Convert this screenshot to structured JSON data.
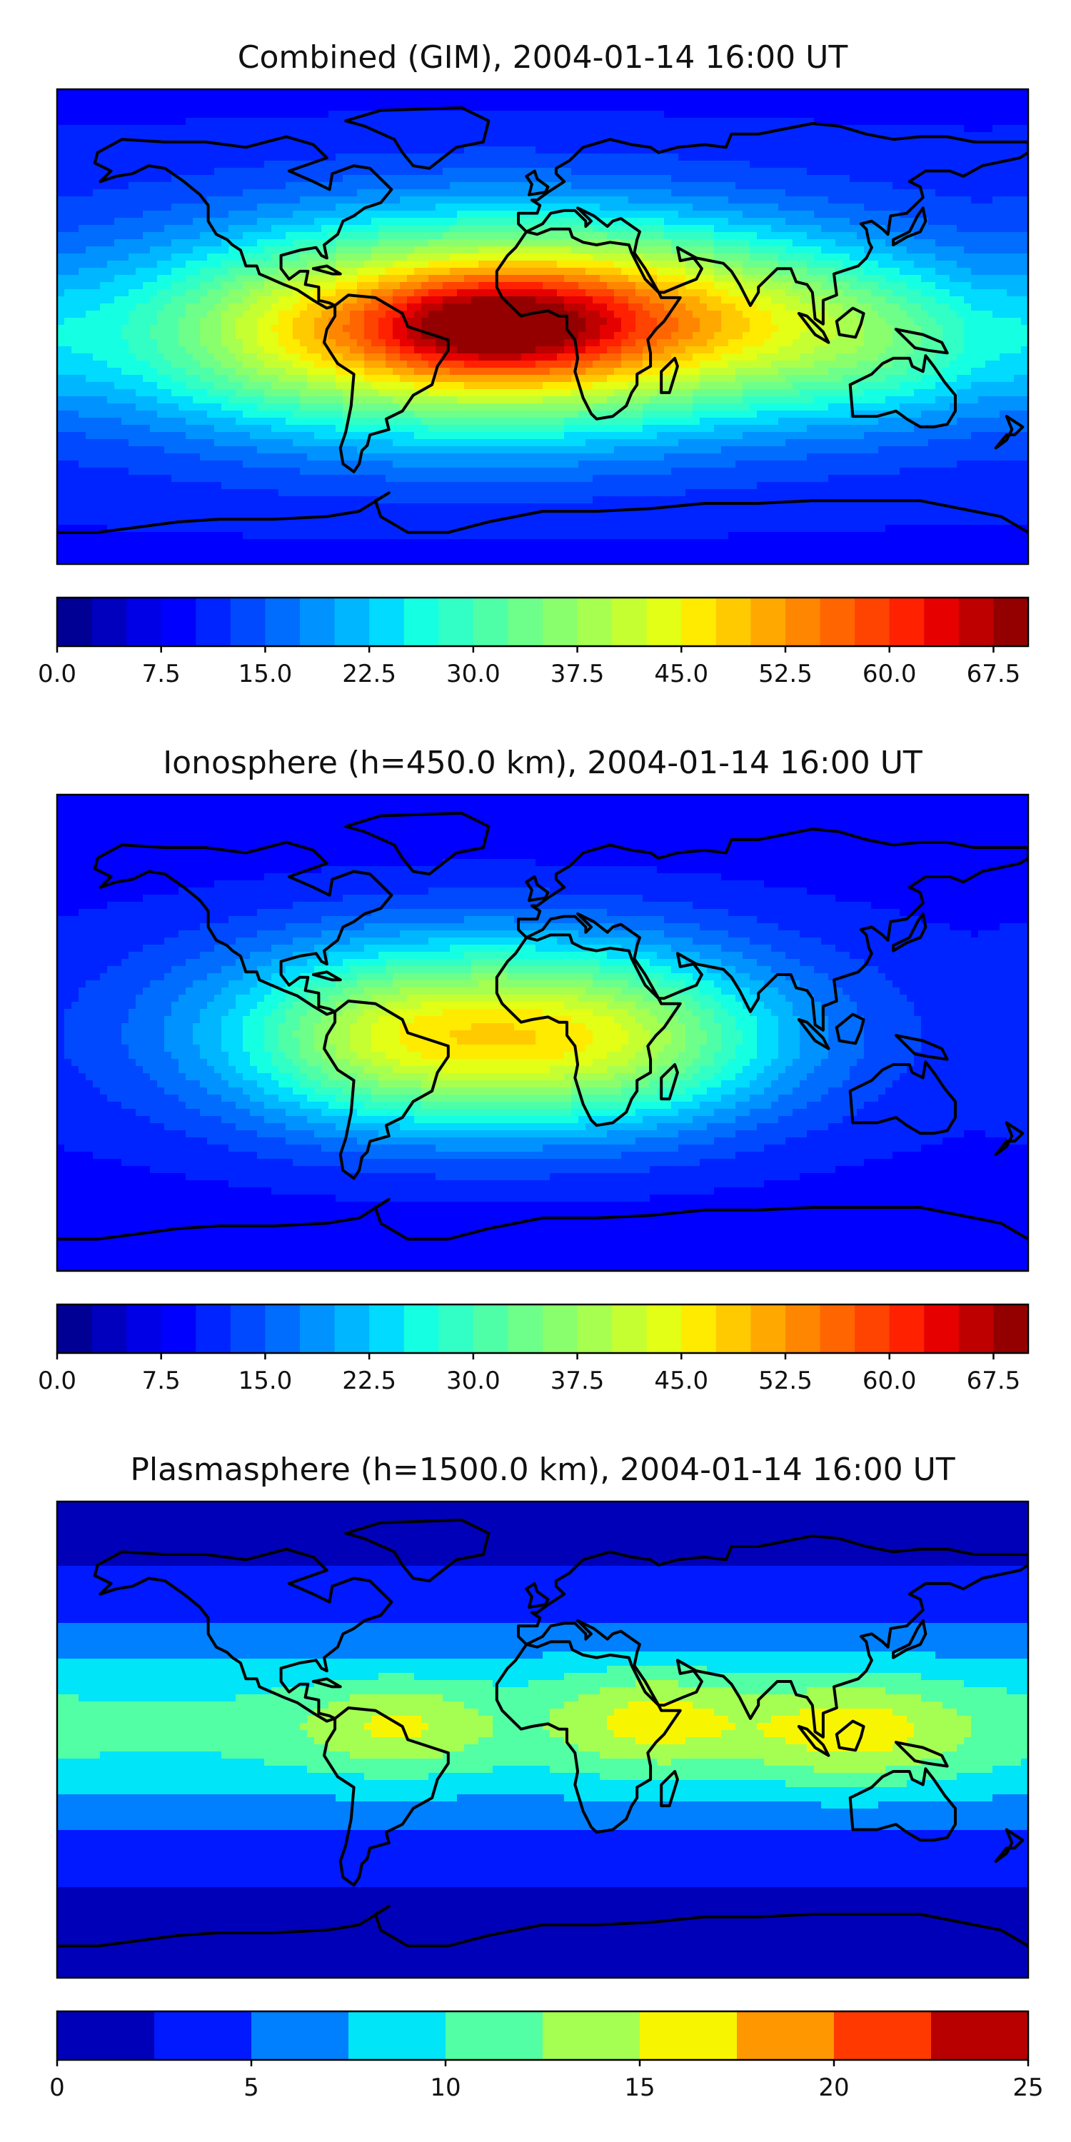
{
  "figure_caption": "TEC maps",
  "chart_data": [
    {
      "type": "heatmap",
      "title": "Combined (GIM), 2004-01-14 16:00 UT",
      "colorbar": {
        "range": [
          0,
          70
        ],
        "levels": 28,
        "ticks": [
          0,
          7.5,
          15,
          22.5,
          30,
          37.5,
          45,
          52.5,
          60,
          67.5
        ],
        "tick_labels": [
          "0.0",
          "7.5",
          "15.0",
          "22.5",
          "30.0",
          "37.5",
          "45.0",
          "52.5",
          "60.0",
          "67.5"
        ]
      },
      "field": {
        "background": 12,
        "blobs": [
          {
            "lon": -20,
            "lat": 0,
            "amp": 42,
            "slon": 75,
            "slat": 28
          },
          {
            "lon": -20,
            "lat": 0,
            "amp": 14,
            "slon": 30,
            "slat": 12
          },
          {
            "lon": 60,
            "lat": 5,
            "amp": 14,
            "slon": 70,
            "slat": 22
          },
          {
            "lon": 130,
            "lat": -10,
            "amp": 10,
            "slon": 40,
            "slat": 20
          },
          {
            "lon": -110,
            "lat": -5,
            "amp": 8,
            "slon": 40,
            "slat": 22
          }
        ]
      }
    },
    {
      "type": "heatmap",
      "title": "Ionosphere  (h=450.0 km), 2004-01-14 16:00 UT",
      "colorbar": {
        "range": [
          0,
          70
        ],
        "levels": 28,
        "ticks": [
          0,
          7.5,
          15,
          22.5,
          30,
          37.5,
          45,
          52.5,
          60,
          67.5
        ],
        "tick_labels": [
          "0.0",
          "7.5",
          "15.0",
          "22.5",
          "30.0",
          "37.5",
          "45.0",
          "52.5",
          "60.0",
          "67.5"
        ]
      },
      "field": {
        "background": 10,
        "blobs": [
          {
            "lon": -20,
            "lat": 0,
            "amp": 32,
            "slon": 70,
            "slat": 26
          },
          {
            "lon": 30,
            "lat": -5,
            "amp": 8,
            "slon": 40,
            "slat": 20
          },
          {
            "lon": -60,
            "lat": -5,
            "amp": 6,
            "slon": 30,
            "slat": 20
          }
        ]
      }
    },
    {
      "type": "heatmap",
      "title": "Plasmasphere (h=1500.0 km), 2004-01-14 16:00 UT",
      "colorbar": {
        "range": [
          0,
          25
        ],
        "levels": 10,
        "ticks": [
          0,
          5,
          10,
          15,
          20,
          25
        ],
        "tick_labels": [
          "0",
          "5",
          "10",
          "15",
          "20",
          "25"
        ]
      },
      "field": {
        "background": 2,
        "band_amp": 8.5,
        "band_center_lat": 5,
        "band_sigma": 28,
        "blobs": [
          {
            "lon": -55,
            "lat": 5,
            "amp": 5,
            "slon": 25,
            "slat": 12
          },
          {
            "lon": 40,
            "lat": 8,
            "amp": 5.5,
            "slon": 25,
            "slat": 14
          },
          {
            "lon": 115,
            "lat": 3,
            "amp": 6,
            "slon": 30,
            "slat": 14
          }
        ]
      }
    }
  ]
}
